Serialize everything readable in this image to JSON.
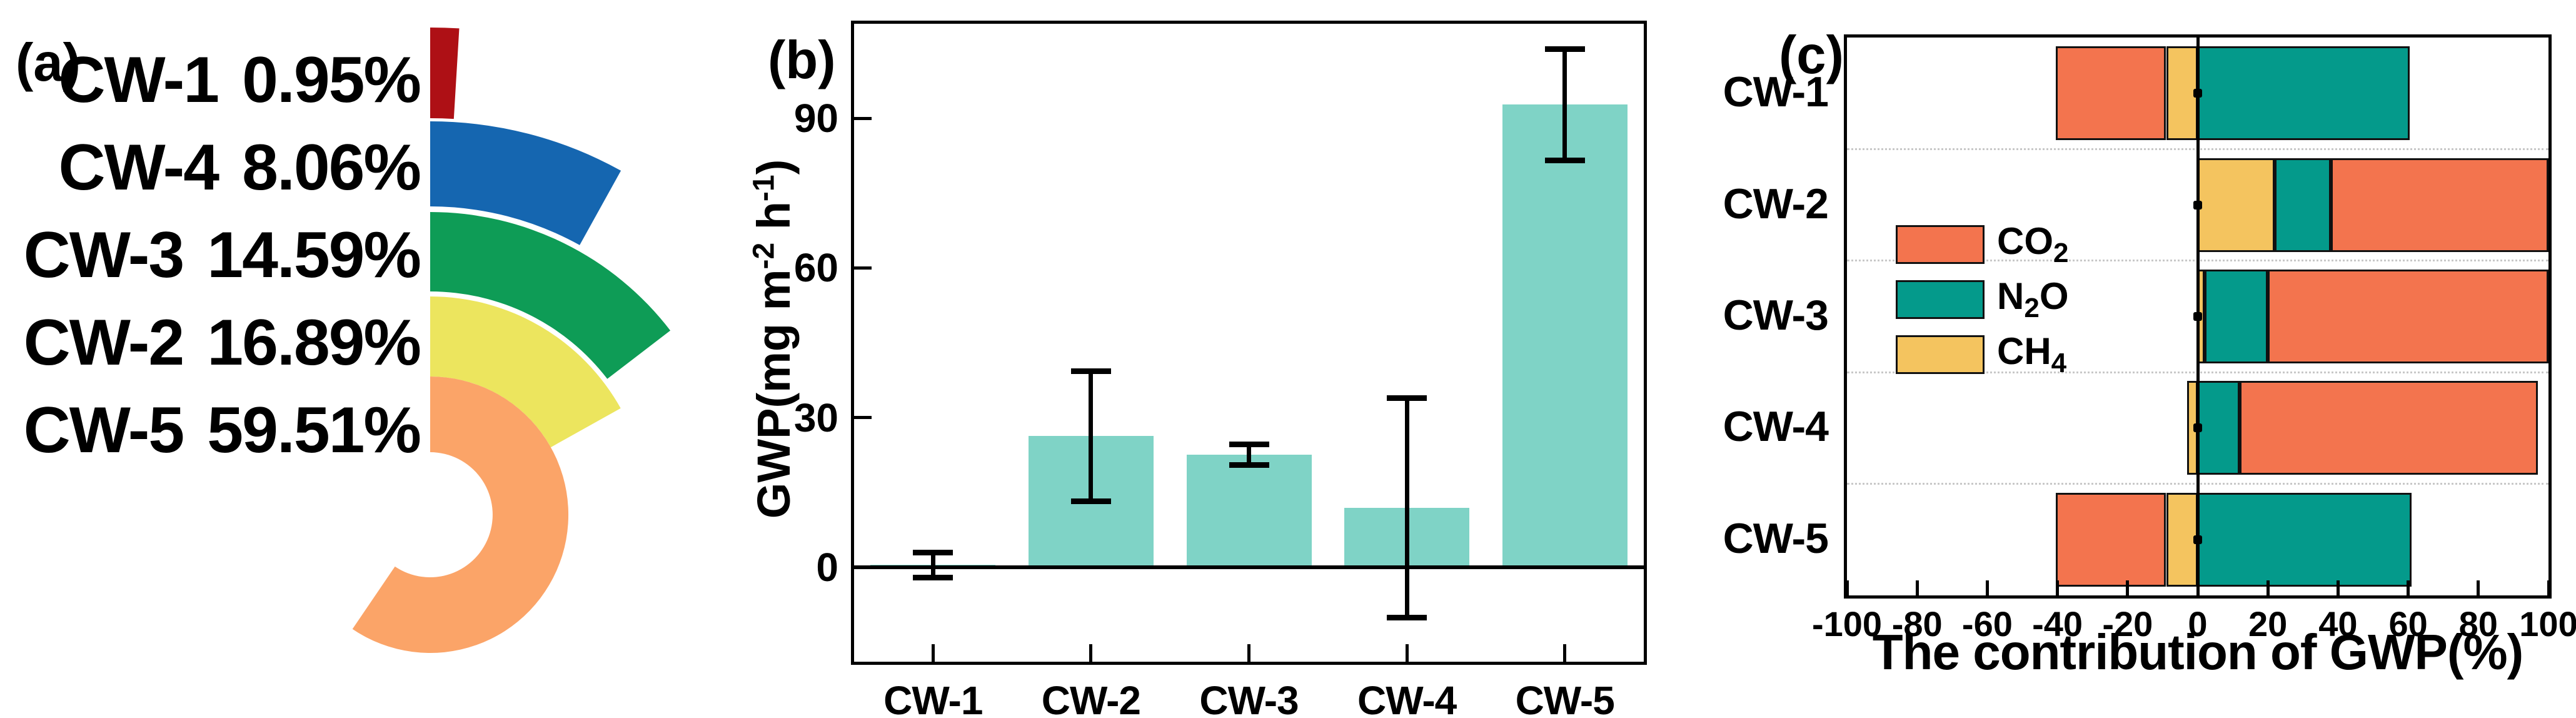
{
  "chart_data": [
    {
      "type": "pie",
      "subtype": "radial-arc-rings",
      "tag": "(a)",
      "categories": [
        "CW-1",
        "CW-4",
        "CW-3",
        "CW-2",
        "CW-5"
      ],
      "values": [
        0.95,
        8.06,
        14.59,
        16.89,
        59.51
      ],
      "labels_display": [
        "CW-1",
        "CW-4",
        "CW-3",
        "CW-2",
        "CW-5"
      ],
      "pct_display": [
        "0.95%",
        "8.06%",
        "14.59%",
        "16.89%",
        "59.51%"
      ],
      "colors": [
        "#ae1015",
        "#1566b0",
        "#0e9c56",
        "#ece55e",
        "#fba468"
      ],
      "geometry": {
        "center": [
          688,
          823
        ],
        "rings": [
          [
            634,
            779
          ],
          [
            493,
            629
          ],
          [
            357,
            484
          ],
          [
            221,
            349
          ],
          [
            100,
            221
          ]
        ],
        "start_angle_deg": 0,
        "sweep_per_pct_deg": 3.6
      }
    },
    {
      "type": "bar",
      "tag": "(b)",
      "categories": [
        "CW-1",
        "CW-2",
        "CW-3",
        "CW-4",
        "CW-5"
      ],
      "values": [
        0.5,
        26.3,
        22.6,
        11.9,
        92.8
      ],
      "errors": [
        2.5,
        13.0,
        2.1,
        22.0,
        11.2
      ],
      "bar_color": "#7fd3c6",
      "ylabel_parts": [
        {
          "t": "GWP(mg m"
        },
        {
          "t": "-2",
          "sup": true
        },
        {
          "t": " h"
        },
        {
          "t": "-1",
          "sup": true
        },
        {
          "t": ")"
        }
      ],
      "yticks": [
        0,
        30,
        60,
        90
      ],
      "ylim": [
        -19,
        109
      ],
      "grid": false,
      "legend_position": "none"
    },
    {
      "type": "bar-h-stacked",
      "tag": "(c)",
      "xlabel": "The contribution of GWP(%)",
      "categories": [
        "CW-1",
        "CW-2",
        "CW-3",
        "CW-4",
        "CW-5"
      ],
      "rows": [
        {
          "cat": "CW-1",
          "segments": [
            {
              "gas": "CO2",
              "from": -40.5,
              "to": -9
            },
            {
              "gas": "CH4",
              "from": -9,
              "to": 0
            },
            {
              "gas": "N2O",
              "from": 0,
              "to": 60.5
            }
          ]
        },
        {
          "cat": "CW-2",
          "segments": [
            {
              "gas": "CH4",
              "from": 0,
              "to": 22
            },
            {
              "gas": "N2O",
              "from": 22,
              "to": 38
            },
            {
              "gas": "CO2",
              "from": 38,
              "to": 100
            }
          ]
        },
        {
          "cat": "CW-3",
          "segments": [
            {
              "gas": "CH4",
              "from": 0,
              "to": 2
            },
            {
              "gas": "N2O",
              "from": 2,
              "to": 20
            },
            {
              "gas": "CO2",
              "from": 20,
              "to": 100
            }
          ]
        },
        {
          "cat": "CW-4",
          "segments": [
            {
              "gas": "CH4",
              "from": -3,
              "to": 0
            },
            {
              "gas": "N2O",
              "from": 0,
              "to": 12
            },
            {
              "gas": "CO2",
              "from": 12,
              "to": 97
            }
          ]
        },
        {
          "cat": "CW-5",
          "segments": [
            {
              "gas": "CO2",
              "from": -40.5,
              "to": -9
            },
            {
              "gas": "CH4",
              "from": -9,
              "to": 0
            },
            {
              "gas": "N2O",
              "from": 0,
              "to": 61
            }
          ]
        }
      ],
      "legend": [
        {
          "gas": "CO2",
          "parts": [
            {
              "t": "CO"
            },
            {
              "t": "2",
              "sub": true
            }
          ],
          "color": "#f3744e"
        },
        {
          "gas": "N2O",
          "parts": [
            {
              "t": "N"
            },
            {
              "t": "2",
              "sub": true
            },
            {
              "t": "O"
            }
          ],
          "color": "#049a8b"
        },
        {
          "gas": "CH4",
          "parts": [
            {
              "t": "CH"
            },
            {
              "t": "4",
              "sub": true
            }
          ],
          "color": "#f4c45f"
        }
      ],
      "legend_position": "inside-left-middle",
      "xticks": [
        -100,
        -80,
        -60,
        -40,
        -20,
        0,
        20,
        40,
        60,
        80,
        100
      ],
      "xlim": [
        -100,
        100
      ],
      "grid": "dotted-row-separators"
    }
  ]
}
